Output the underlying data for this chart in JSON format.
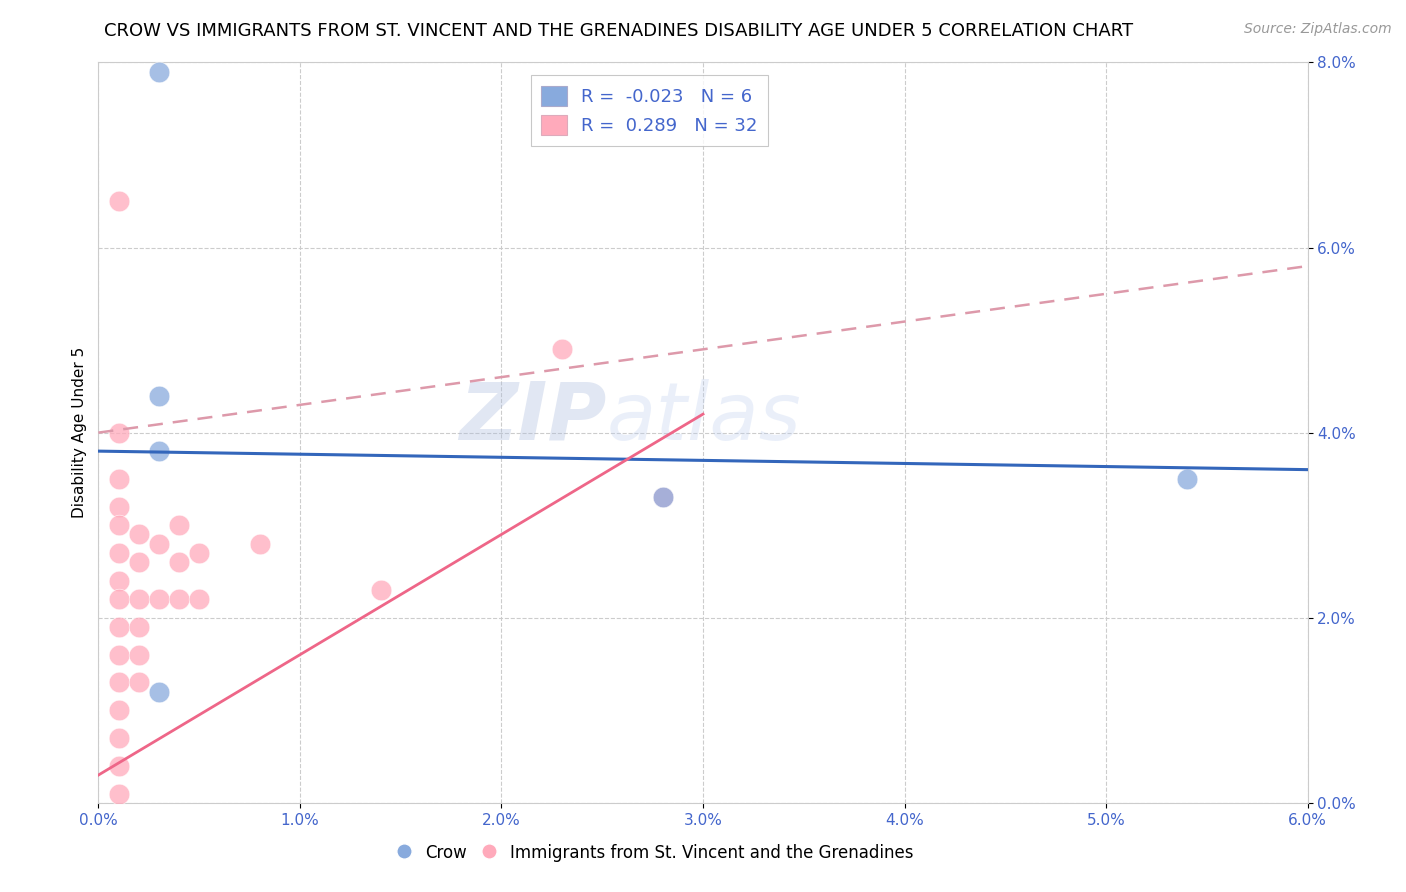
{
  "title": "CROW VS IMMIGRANTS FROM ST. VINCENT AND THE GRENADINES DISABILITY AGE UNDER 5 CORRELATION CHART",
  "source": "Source: ZipAtlas.com",
  "ylabel": "Disability Age Under 5",
  "xlim": [
    0.0,
    0.06
  ],
  "ylim": [
    0.0,
    0.08
  ],
  "xticks": [
    0.0,
    0.01,
    0.02,
    0.03,
    0.04,
    0.05,
    0.06
  ],
  "xtick_labels": [
    "0.0%",
    "1.0%",
    "2.0%",
    "3.0%",
    "4.0%",
    "5.0%",
    "6.0%"
  ],
  "yticks": [
    0.0,
    0.02,
    0.04,
    0.06,
    0.08
  ],
  "ytick_labels": [
    "0.0%",
    "2.0%",
    "4.0%",
    "6.0%",
    "8.0%"
  ],
  "crow_color": "#88aadd",
  "immigrants_color": "#ffaabb",
  "crow_edge_color": "#6688bb",
  "immigrants_edge_color": "#ee8899",
  "crow_R": -0.023,
  "crow_N": 6,
  "immigrants_R": 0.289,
  "immigrants_N": 32,
  "crow_line_color": "#3366bb",
  "immigrants_solid_line_color": "#ee6688",
  "immigrants_dash_line_color": "#dd99aa",
  "crow_points": [
    [
      0.003,
      0.079
    ],
    [
      0.003,
      0.044
    ],
    [
      0.003,
      0.038
    ],
    [
      0.028,
      0.033
    ],
    [
      0.003,
      0.012
    ],
    [
      0.054,
      0.035
    ]
  ],
  "immigrants_points": [
    [
      0.001,
      0.065
    ],
    [
      0.001,
      0.04
    ],
    [
      0.001,
      0.035
    ],
    [
      0.001,
      0.032
    ],
    [
      0.001,
      0.03
    ],
    [
      0.001,
      0.027
    ],
    [
      0.001,
      0.024
    ],
    [
      0.001,
      0.022
    ],
    [
      0.001,
      0.019
    ],
    [
      0.001,
      0.016
    ],
    [
      0.001,
      0.013
    ],
    [
      0.001,
      0.01
    ],
    [
      0.001,
      0.007
    ],
    [
      0.001,
      0.004
    ],
    [
      0.001,
      0.001
    ],
    [
      0.002,
      0.029
    ],
    [
      0.002,
      0.026
    ],
    [
      0.002,
      0.022
    ],
    [
      0.002,
      0.019
    ],
    [
      0.002,
      0.016
    ],
    [
      0.002,
      0.013
    ],
    [
      0.003,
      0.028
    ],
    [
      0.003,
      0.022
    ],
    [
      0.004,
      0.03
    ],
    [
      0.004,
      0.026
    ],
    [
      0.004,
      0.022
    ],
    [
      0.005,
      0.027
    ],
    [
      0.005,
      0.022
    ],
    [
      0.008,
      0.028
    ],
    [
      0.014,
      0.023
    ],
    [
      0.023,
      0.049
    ],
    [
      0.028,
      0.033
    ]
  ],
  "watermark_line1": "ZIP",
  "watermark_line2": "atlas",
  "title_fontsize": 13,
  "axis_label_fontsize": 11,
  "tick_fontsize": 11,
  "legend_fontsize": 13,
  "tick_color": "#4466cc"
}
